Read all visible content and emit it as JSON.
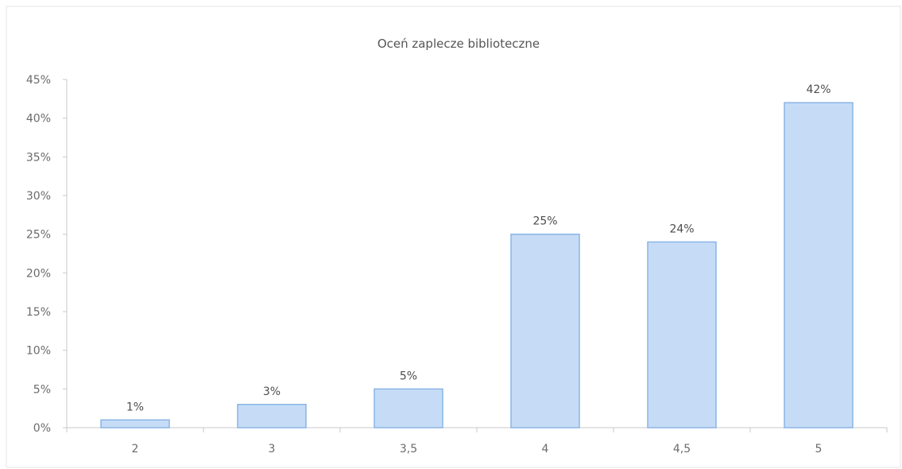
{
  "chart_data": {
    "type": "bar",
    "title": "Oceń zaplecze biblioteczne",
    "categories": [
      "2",
      "3",
      "3,5",
      "4",
      "4,5",
      "5"
    ],
    "values": [
      1,
      3,
      5,
      25,
      24,
      42
    ],
    "data_labels": [
      "1%",
      "3%",
      "5%",
      "25%",
      "24%",
      "42%"
    ],
    "yticks": [
      0,
      5,
      10,
      15,
      20,
      25,
      30,
      35,
      40,
      45
    ],
    "ytick_labels": [
      "0%",
      "5%",
      "10%",
      "15%",
      "20%",
      "25%",
      "30%",
      "35%",
      "40%",
      "45%"
    ],
    "ylim": [
      0,
      45
    ],
    "xlabel": "",
    "ylabel": "",
    "grid": false,
    "legend": "none",
    "bar_fill": "#c6dcf6",
    "bar_stroke": "#8ab4e6"
  }
}
